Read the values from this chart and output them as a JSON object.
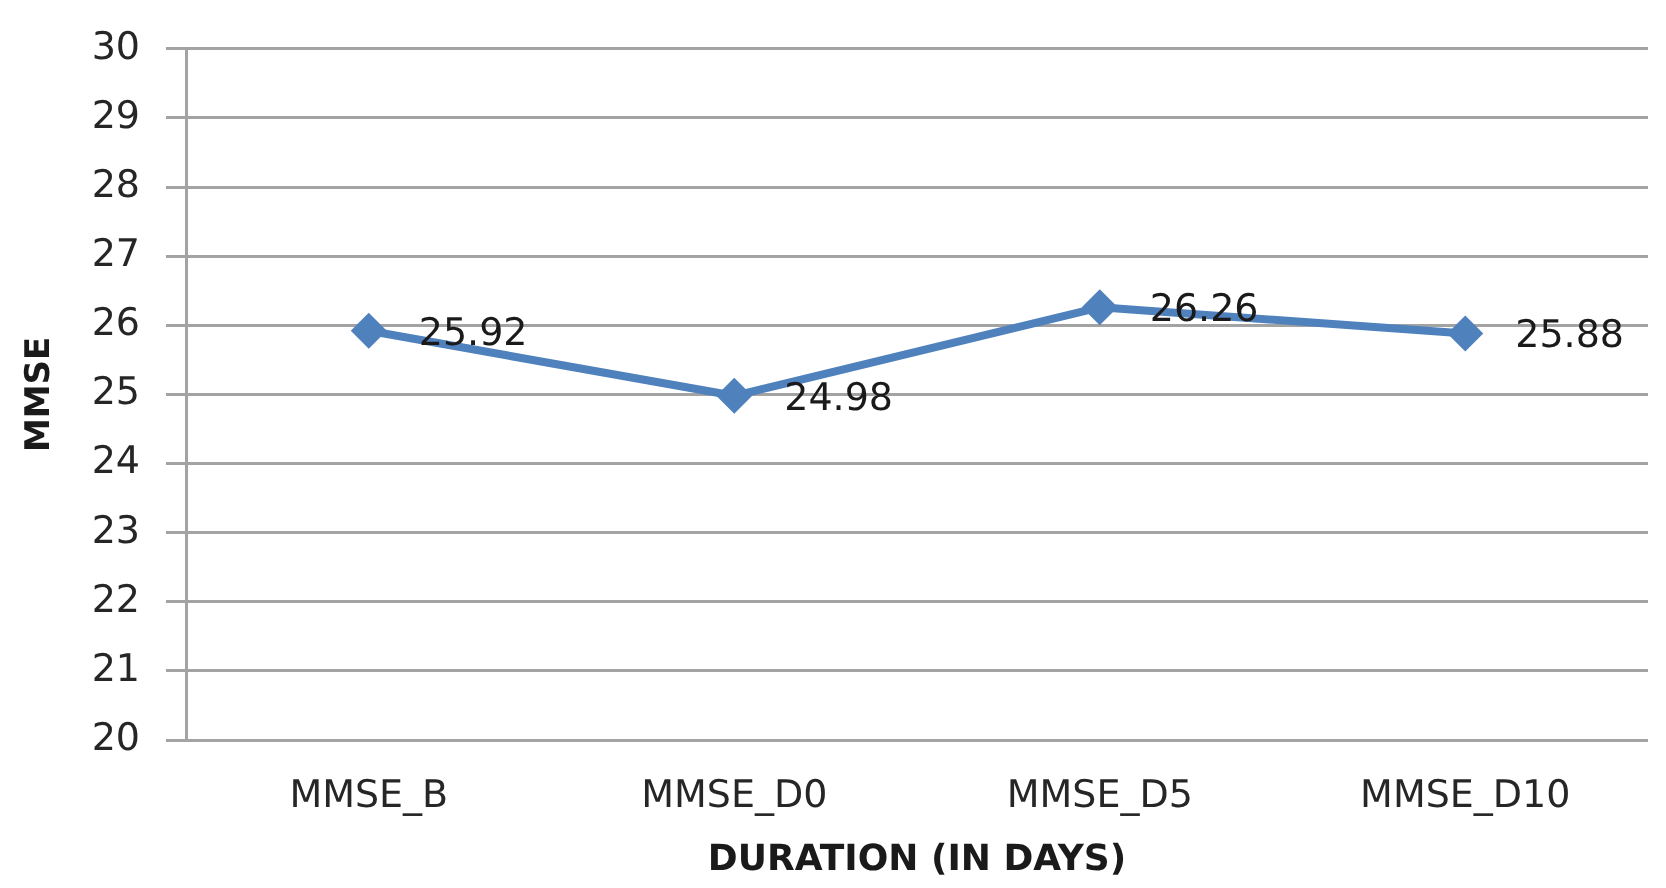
{
  "chart_data": {
    "type": "line",
    "categories": [
      "MMSE_B",
      "MMSE_D0",
      "MMSE_D5",
      "MMSE_D10"
    ],
    "values": [
      25.92,
      24.98,
      26.26,
      25.88
    ],
    "color": "#4f81bd",
    "xlabel": "DURATION (IN DAYS)",
    "ylabel": "MMSE",
    "ylim": [
      20,
      30
    ],
    "yticks": [
      20,
      21,
      22,
      23,
      24,
      25,
      26,
      27,
      28,
      29,
      30
    ],
    "grid": "y",
    "marker": "diamond",
    "line_style": "solid",
    "data_labels": true
  }
}
